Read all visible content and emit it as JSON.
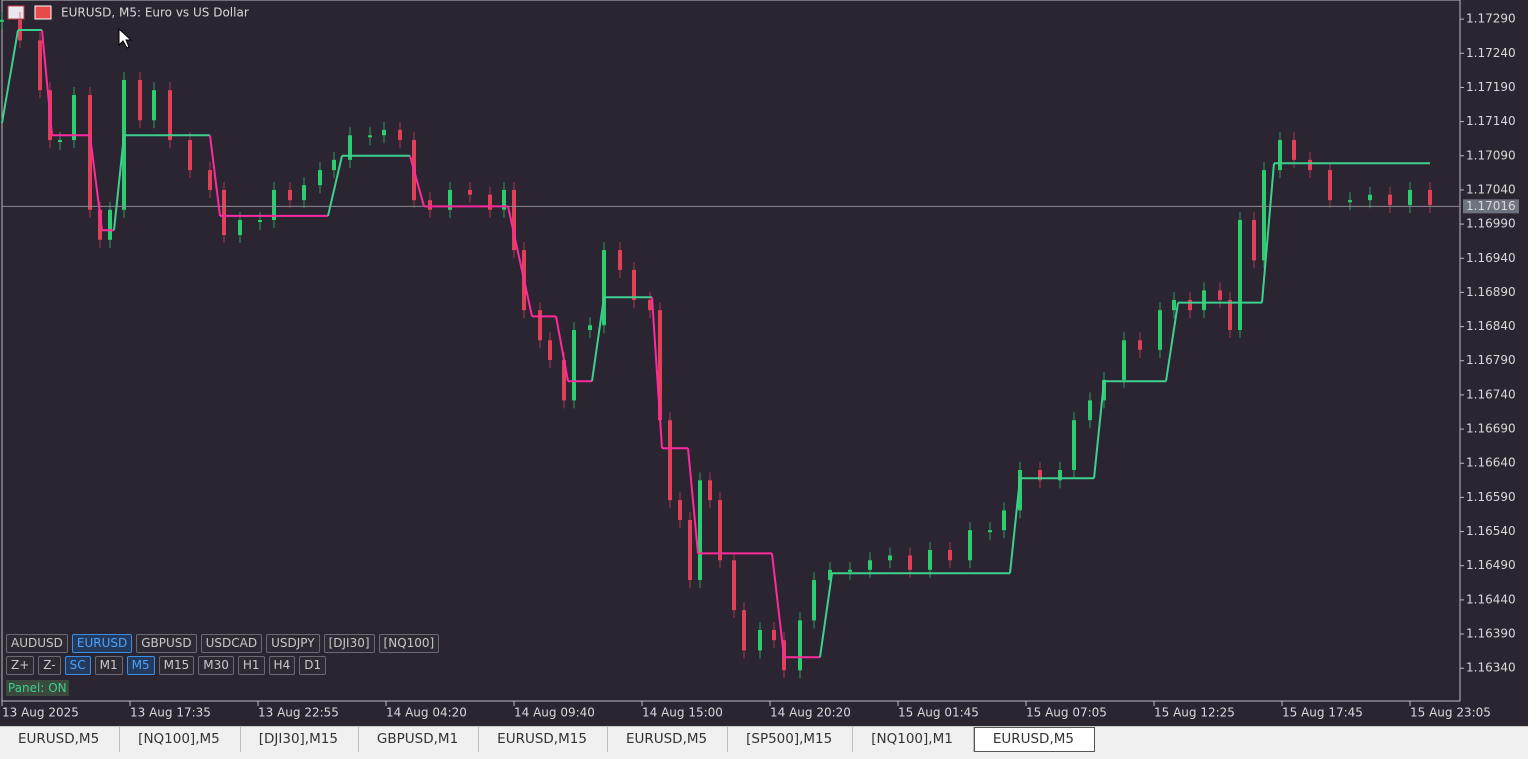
{
  "window": {
    "title": "EURUSD, M5:  Euro vs US Dollar"
  },
  "chart_data": {
    "type": "candle-step",
    "xlim": [
      0,
      729
    ],
    "xticks": [
      {
        "value": 0,
        "label": "13 Aug 2025"
      },
      {
        "value": 64,
        "label": "13 Aug 17:35"
      },
      {
        "value": 128,
        "label": "13 Aug 22:55"
      },
      {
        "value": 192,
        "label": "14 Aug 04:20"
      },
      {
        "value": 256,
        "label": "14 Aug 09:40"
      },
      {
        "value": 320,
        "label": "14 Aug 15:00"
      },
      {
        "value": 384,
        "label": "14 Aug 20:20"
      },
      {
        "value": 448,
        "label": "15 Aug 01:45"
      },
      {
        "value": 512,
        "label": "15 Aug 07:05"
      },
      {
        "value": 576,
        "label": "15 Aug 12:25"
      },
      {
        "value": 640,
        "label": "15 Aug 17:45"
      },
      {
        "value": 704,
        "label": "15 Aug 23:05"
      }
    ],
    "ylim": [
      1.16292,
      1.17318
    ],
    "yticks": [
      {
        "value": 1.1729,
        "label": "1.17290"
      },
      {
        "value": 1.1724,
        "label": "1.17240"
      },
      {
        "value": 1.1719,
        "label": "1.17190"
      },
      {
        "value": 1.1714,
        "label": "1.17140"
      },
      {
        "value": 1.1709,
        "label": "1.17090"
      },
      {
        "value": 1.1704,
        "label": "1.17040"
      },
      {
        "value": 1.1699,
        "label": "1.16990"
      },
      {
        "value": 1.1694,
        "label": "1.16940"
      },
      {
        "value": 1.1689,
        "label": "1.16890"
      },
      {
        "value": 1.1684,
        "label": "1.16840"
      },
      {
        "value": 1.1679,
        "label": "1.16790"
      },
      {
        "value": 1.1674,
        "label": "1.16740"
      },
      {
        "value": 1.1669,
        "label": "1.16690"
      },
      {
        "value": 1.1664,
        "label": "1.16640"
      },
      {
        "value": 1.1659,
        "label": "1.16590"
      },
      {
        "value": 1.1654,
        "label": "1.16540"
      },
      {
        "value": 1.1649,
        "label": "1.16490"
      },
      {
        "value": 1.1644,
        "label": "1.16440"
      },
      {
        "value": 1.1639,
        "label": "1.16390"
      },
      {
        "value": 1.1634,
        "label": "1.16340"
      }
    ],
    "current_price": 1.17016,
    "series": [
      {
        "up_color": "#2ecc71",
        "down_color": "#e0405a",
        "x": [
          0,
          9,
          19,
          24,
          29,
          36,
          44,
          49,
          54,
          61,
          69,
          76,
          84,
          94,
          104,
          111,
          119,
          129,
          136,
          144,
          151,
          159,
          166,
          174,
          184,
          191,
          199,
          206,
          214,
          224,
          234,
          244,
          251,
          256,
          261,
          269,
          274,
          281,
          286,
          294,
          301,
          309,
          316,
          324,
          329,
          334,
          339,
          344,
          349,
          354,
          359,
          366,
          371,
          379,
          386,
          391,
          399,
          406,
          414,
          424,
          434,
          444,
          454,
          464,
          474,
          484,
          494,
          501,
          509,
          519,
          529,
          536,
          544,
          551,
          561,
          569,
          579,
          586,
          594,
          601,
          609,
          614,
          619,
          626,
          631,
          639,
          646,
          654,
          664,
          674,
          684,
          694,
          704,
          714
        ],
        "values": [
          1.17289,
          1.17259,
          1.17186,
          1.17113,
          1.17113,
          1.17179,
          1.17011,
          1.16967,
          1.17011,
          1.17201,
          1.17142,
          1.17186,
          1.17113,
          1.17069,
          1.1704,
          1.16974,
          1.16996,
          1.16996,
          1.1704,
          1.17025,
          1.17047,
          1.17069,
          1.17084,
          1.1712,
          1.1712,
          1.17128,
          1.17113,
          1.17025,
          1.17011,
          1.1704,
          1.17033,
          1.17011,
          1.1704,
          1.16952,
          1.16864,
          1.1682,
          1.16791,
          1.16732,
          1.16835,
          1.16842,
          1.16952,
          1.16923,
          1.16879,
          1.16864,
          1.16703,
          1.16586,
          1.16557,
          1.16469,
          1.16615,
          1.16586,
          1.16498,
          1.16425,
          1.16366,
          1.16396,
          1.16381,
          1.16337,
          1.1641,
          1.16469,
          1.16484,
          1.16484,
          1.16498,
          1.16505,
          1.16484,
          1.16513,
          1.16498,
          1.16542,
          1.16542,
          1.16571,
          1.1663,
          1.16615,
          1.1663,
          1.16703,
          1.16732,
          1.16762,
          1.1682,
          1.16806,
          1.16864,
          1.16879,
          1.16864,
          1.16893,
          1.16879,
          1.16835,
          1.16996,
          1.16937,
          1.17069,
          1.17113,
          1.17084,
          1.17069,
          1.17025,
          1.17025,
          1.17033,
          1.17018,
          1.1704,
          1.17018
        ]
      },
      {
        "up_color": "#3ecf8e",
        "down_color": "#ff2a9d",
        "x": [
          0,
          8,
          20,
          25,
          44,
          50,
          56,
          61,
          104,
          109,
          163,
          170,
          204,
          211,
          253,
          265,
          277,
          283,
          295,
          301,
          325,
          330,
          343,
          348,
          385,
          391,
          409,
          415,
          504,
          509,
          546,
          551,
          582,
          588,
          630,
          636,
          714
        ],
        "values": [
          1.17138,
          1.17274,
          1.17274,
          1.1712,
          1.1712,
          1.16981,
          1.16981,
          1.1712,
          1.1712,
          1.17002,
          1.17002,
          1.1709,
          1.1709,
          1.17016,
          1.17016,
          1.16855,
          1.16855,
          1.1676,
          1.1676,
          1.16883,
          1.16883,
          1.16662,
          1.16662,
          1.16508,
          1.16508,
          1.16356,
          1.16356,
          1.16479,
          1.16479,
          1.16618,
          1.16618,
          1.1676,
          1.1676,
          1.16875,
          1.16875,
          1.17079,
          1.17079
        ]
      }
    ]
  },
  "panel": {
    "symbols": [
      "AUDUSD",
      "EURUSD",
      "GBPUSD",
      "USDCAD",
      "USDJPY",
      "[DJI30]",
      "[NQ100]"
    ],
    "active_symbol": 1,
    "controls": [
      "Z+",
      "Z-",
      "SC"
    ],
    "active_control": 2,
    "timeframes": [
      "M1",
      "M5",
      "M15",
      "M30",
      "H1",
      "H4",
      "D1"
    ],
    "active_timeframe": 1,
    "status": "Panel: ON"
  },
  "tabs": {
    "items": [
      "EURUSD,M5",
      "[NQ100],M5",
      "[DJI30],M15",
      "GBPUSD,M1",
      "EURUSD,M15",
      "EURUSD,M5",
      "[SP500],M15",
      "[NQ100],M1",
      "EURUSD,M5"
    ],
    "active": 8
  }
}
